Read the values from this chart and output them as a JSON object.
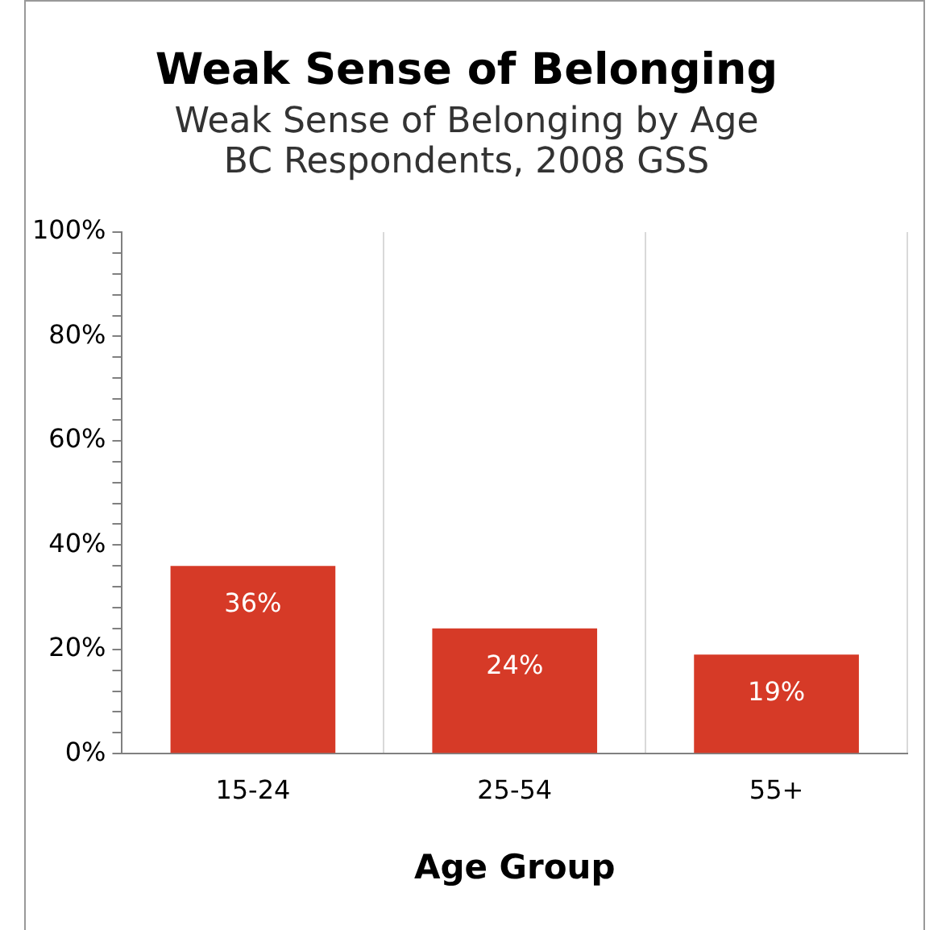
{
  "chart_data": {
    "type": "bar",
    "title": "Weak Sense of Belonging",
    "subtitle": "Weak Sense of Belonging by Age\nBC Respondents, 2008 GSS",
    "xlabel": "Age Group",
    "categories": [
      "15-24",
      "25-54",
      "55+"
    ],
    "values": [
      36,
      24,
      19
    ],
    "value_labels": [
      "36%",
      "24%",
      "19%"
    ],
    "color": "#d63a27",
    "ylim": [
      0,
      100
    ],
    "yticks": [
      {
        "value": 0,
        "label": "0%"
      },
      {
        "value": 4,
        "label": null
      },
      {
        "value": 8,
        "label": null
      },
      {
        "value": 12,
        "label": null
      },
      {
        "value": 16,
        "label": null
      },
      {
        "value": 20,
        "label": "20%"
      },
      {
        "value": 24,
        "label": null
      },
      {
        "value": 28,
        "label": null
      },
      {
        "value": 32,
        "label": null
      },
      {
        "value": 36,
        "label": null
      },
      {
        "value": 40,
        "label": "40%"
      },
      {
        "value": 44,
        "label": null
      },
      {
        "value": 48,
        "label": null
      },
      {
        "value": 52,
        "label": null
      },
      {
        "value": 56,
        "label": null
      },
      {
        "value": 60,
        "label": "60%"
      },
      {
        "value": 64,
        "label": null
      },
      {
        "value": 68,
        "label": null
      },
      {
        "value": 72,
        "label": null
      },
      {
        "value": 76,
        "label": null
      },
      {
        "value": 80,
        "label": "80%"
      },
      {
        "value": 84,
        "label": null
      },
      {
        "value": 88,
        "label": null
      },
      {
        "value": 92,
        "label": null
      },
      {
        "value": 96,
        "label": null
      },
      {
        "value": 100,
        "label": "100%"
      }
    ],
    "grid": "x",
    "legend": false
  }
}
